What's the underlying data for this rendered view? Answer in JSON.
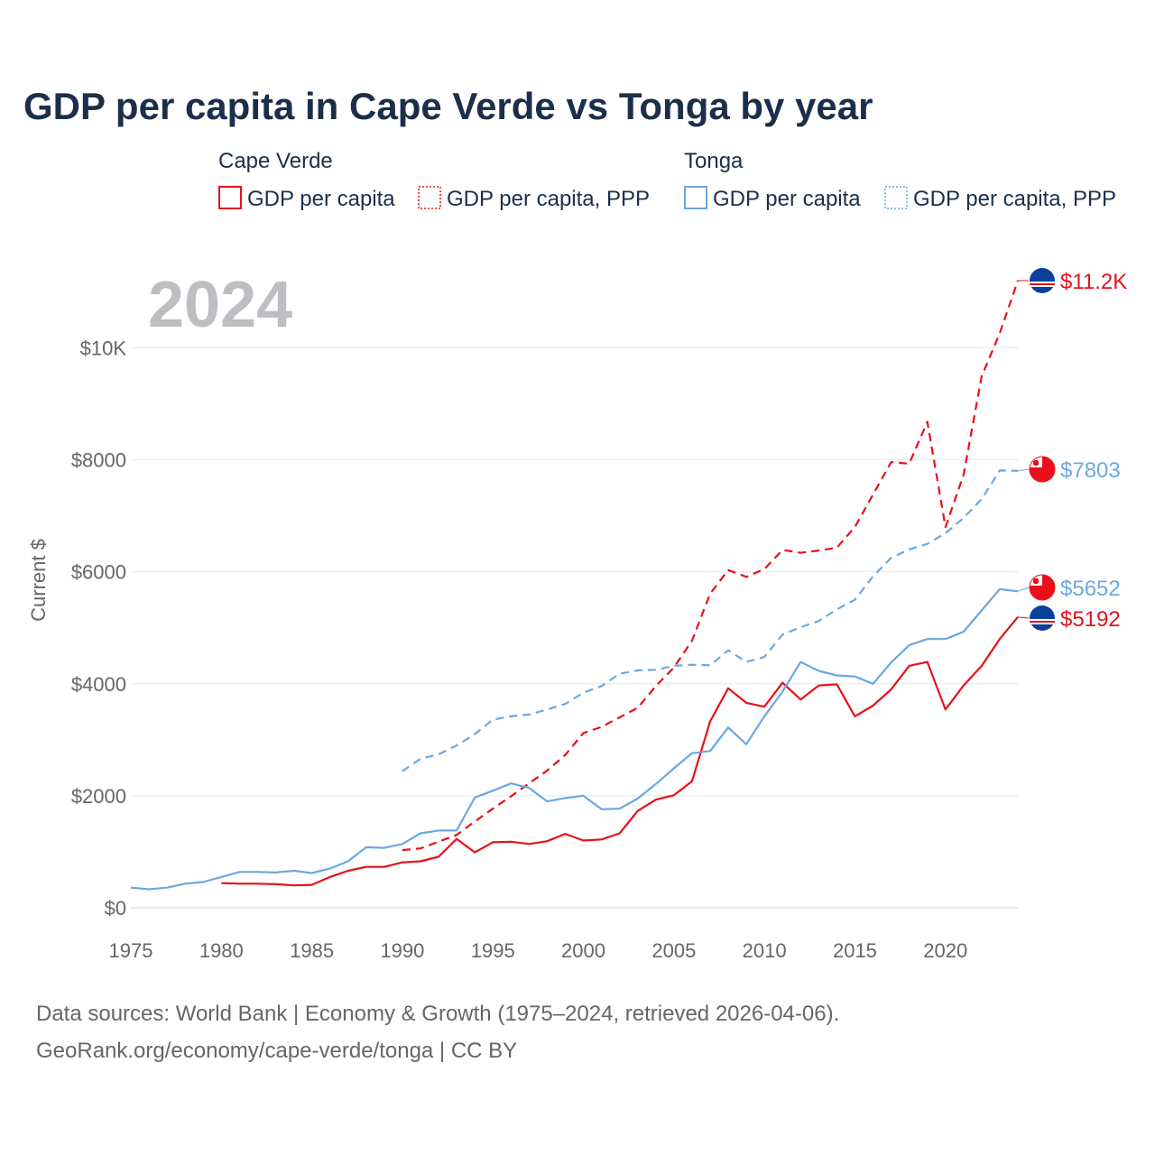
{
  "chart_data": {
    "type": "line",
    "title": "GDP per capita in Cape Verde vs Tonga by year",
    "current_year": "2024",
    "ylabel": "Current $",
    "xlim": [
      1975,
      2024
    ],
    "ylim": [
      0,
      11200
    ],
    "x_ticks": [
      1975,
      1980,
      1985,
      1990,
      1995,
      2000,
      2005,
      2010,
      2015,
      2020
    ],
    "y_ticks": [
      {
        "value": 0,
        "label": "$0"
      },
      {
        "value": 2000,
        "label": "$2000"
      },
      {
        "value": 4000,
        "label": "$4000"
      },
      {
        "value": 6000,
        "label": "$6000"
      },
      {
        "value": 8000,
        "label": "$8000"
      },
      {
        "value": 10000,
        "label": "$10K"
      }
    ],
    "legend_groups": [
      {
        "country": "Cape Verde",
        "items": [
          "GDP per capita",
          "GDP per capita, PPP"
        ],
        "color": "#e8101a"
      },
      {
        "country": "Tonga",
        "items": [
          "GDP per capita",
          "GDP per capita, PPP"
        ],
        "color": "#6aa8e2"
      }
    ],
    "series": [
      {
        "name": "Cape Verde GDP per capita",
        "country": "Cape Verde",
        "color": "#e8101a",
        "dashed": false,
        "x": [
          1980,
          1981,
          1982,
          1983,
          1984,
          1985,
          1986,
          1987,
          1988,
          1989,
          1990,
          1991,
          1992,
          1993,
          1994,
          1995,
          1996,
          1997,
          1998,
          1999,
          2000,
          2001,
          2002,
          2003,
          2004,
          2005,
          2006,
          2007,
          2008,
          2009,
          2010,
          2011,
          2012,
          2013,
          2014,
          2015,
          2016,
          2017,
          2018,
          2019,
          2020,
          2021,
          2022,
          2023,
          2024
        ],
        "values": [
          440,
          430,
          430,
          420,
          400,
          410,
          550,
          660,
          730,
          730,
          810,
          830,
          910,
          1230,
          990,
          1170,
          1180,
          1140,
          1190,
          1320,
          1200,
          1220,
          1330,
          1730,
          1930,
          2010,
          2260,
          3330,
          3920,
          3660,
          3590,
          4020,
          3720,
          3970,
          3990,
          3420,
          3610,
          3900,
          4320,
          4390,
          3540,
          3970,
          4320,
          4800,
          5192
        ],
        "end_label": "$5192"
      },
      {
        "name": "Cape Verde GDP per capita, PPP",
        "country": "Cape Verde",
        "color": "#e8101a",
        "dashed": true,
        "x": [
          1990,
          1991,
          1992,
          1993,
          1994,
          1995,
          1996,
          1997,
          1998,
          1999,
          2000,
          2001,
          2002,
          2003,
          2004,
          2005,
          2006,
          2007,
          2008,
          2009,
          2010,
          2011,
          2012,
          2013,
          2014,
          2015,
          2016,
          2017,
          2018,
          2019,
          2020,
          2021,
          2022,
          2023,
          2024
        ],
        "values": [
          1030,
          1060,
          1180,
          1300,
          1540,
          1770,
          1990,
          2220,
          2450,
          2730,
          3120,
          3230,
          3400,
          3570,
          3960,
          4290,
          4770,
          5610,
          6030,
          5910,
          6050,
          6390,
          6340,
          6380,
          6430,
          6800,
          7380,
          7960,
          7930,
          8680,
          6800,
          7730,
          9490,
          10260,
          11200
        ],
        "end_label": "$11.2K"
      },
      {
        "name": "Tonga GDP per capita",
        "country": "Tonga",
        "color": "#6aa8e2",
        "dashed": false,
        "x": [
          1975,
          1976,
          1977,
          1978,
          1979,
          1980,
          1981,
          1982,
          1983,
          1984,
          1985,
          1986,
          1987,
          1988,
          1989,
          1990,
          1991,
          1992,
          1993,
          1994,
          1995,
          1996,
          1997,
          1998,
          1999,
          2000,
          2001,
          2002,
          2003,
          2004,
          2005,
          2006,
          2007,
          2008,
          2009,
          2010,
          2011,
          2012,
          2013,
          2014,
          2015,
          2016,
          2017,
          2018,
          2019,
          2020,
          2021,
          2022,
          2023,
          2024
        ],
        "values": [
          360,
          330,
          360,
          430,
          460,
          550,
          640,
          640,
          630,
          660,
          620,
          700,
          830,
          1080,
          1070,
          1140,
          1330,
          1380,
          1380,
          1970,
          2090,
          2220,
          2140,
          1900,
          1960,
          2000,
          1760,
          1770,
          1950,
          2210,
          2490,
          2760,
          2800,
          3220,
          2920,
          3420,
          3860,
          4390,
          4230,
          4150,
          4130,
          4000,
          4380,
          4690,
          4800,
          4800,
          4930,
          5310,
          5690,
          5652
        ],
        "end_label": "$5652"
      },
      {
        "name": "Tonga GDP per capita, PPP",
        "country": "Tonga",
        "color": "#6aa8e2",
        "dashed": true,
        "x": [
          1990,
          1991,
          1992,
          1993,
          1994,
          1995,
          1996,
          1997,
          1998,
          1999,
          2000,
          2001,
          2002,
          2003,
          2004,
          2005,
          2006,
          2007,
          2008,
          2009,
          2010,
          2011,
          2012,
          2013,
          2014,
          2015,
          2016,
          2017,
          2018,
          2019,
          2020,
          2021,
          2022,
          2023,
          2024
        ],
        "values": [
          2440,
          2660,
          2740,
          2900,
          3100,
          3360,
          3420,
          3450,
          3540,
          3640,
          3840,
          3960,
          4180,
          4240,
          4250,
          4320,
          4340,
          4330,
          4600,
          4390,
          4480,
          4880,
          5010,
          5120,
          5330,
          5500,
          5920,
          6250,
          6400,
          6500,
          6690,
          6960,
          7300,
          7810,
          7803
        ],
        "end_label": "$7803"
      }
    ],
    "footer": {
      "line1": "Data sources: World Bank | Economy & Growth (1975–2024, retrieved 2026-04-06).",
      "line2": "GeoRank.org/economy/cape-verde/tonga | CC BY"
    }
  }
}
